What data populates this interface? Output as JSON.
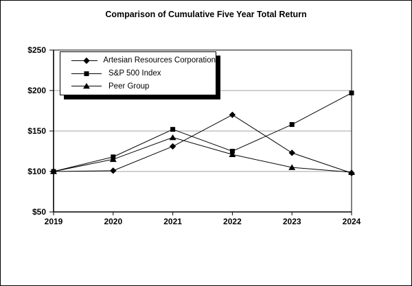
{
  "chart_data": {
    "type": "line",
    "title": "Comparison of Cumulative Five Year Total Return",
    "x": [
      "2019",
      "2020",
      "2021",
      "2022",
      "2023",
      "2024"
    ],
    "xlabel": "",
    "ylabel": "",
    "ylim": [
      50,
      250
    ],
    "y_ticks": [
      50,
      100,
      150,
      200,
      250
    ],
    "y_tick_labels": [
      "$50",
      "$100",
      "$150",
      "$200",
      "$250"
    ],
    "gridlines_at": [
      100,
      150,
      200
    ],
    "grid": "horizontal-only",
    "legend_position": "top-left-inside-with-drop-shadow",
    "series": [
      {
        "name": "Artesian Resources Corporation",
        "marker": "diamond",
        "values": [
          100,
          101,
          131,
          170,
          123,
          98
        ]
      },
      {
        "name": "S&P 500 Index",
        "marker": "square",
        "values": [
          100,
          118,
          152,
          125,
          158,
          197
        ]
      },
      {
        "name": "Peer Group",
        "marker": "triangle",
        "values": [
          100,
          115,
          142,
          121,
          105,
          99
        ]
      }
    ],
    "draw_order": [
      2,
      0,
      1
    ],
    "colors": {
      "series_line": "#000000",
      "marker_fill": "#000000",
      "gridline": "#a0a0a0",
      "axis": "#000000",
      "background": "#ffffff",
      "text": "#000000"
    }
  }
}
